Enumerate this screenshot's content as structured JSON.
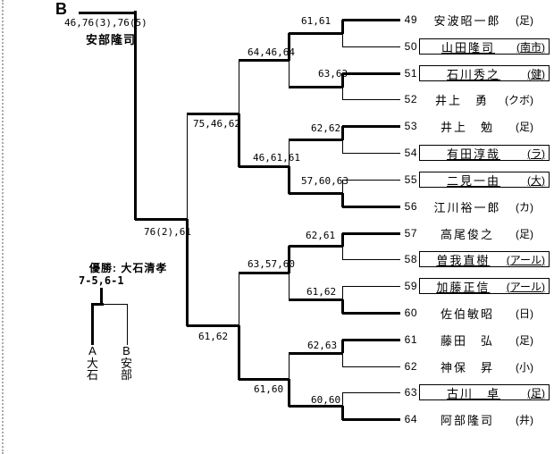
{
  "block": {
    "label": "B",
    "advance_score": "46,76(3),76(5)",
    "winner_name": "安部隆司"
  },
  "champion": {
    "title": "優勝: 大石清孝",
    "score": "7-5,6-1",
    "finalist_left": "A大石",
    "finalist_right": "B安部"
  },
  "players": [
    {
      "num": "49",
      "name": "安波昭一郎",
      "club": "(足)",
      "boxed": false
    },
    {
      "num": "50",
      "name": "山田隆司",
      "club": "(南市)",
      "boxed": true
    },
    {
      "num": "51",
      "name": "石川秀之",
      "club": "(健)",
      "boxed": true
    },
    {
      "num": "52",
      "name": "井上　勇",
      "club": "(クボ)",
      "boxed": false
    },
    {
      "num": "53",
      "name": "井上　勉",
      "club": "(足)",
      "boxed": false
    },
    {
      "num": "54",
      "name": "有田淳哉",
      "club": "(ラ)",
      "boxed": true
    },
    {
      "num": "55",
      "name": "二見一由",
      "club": "(大)",
      "boxed": true
    },
    {
      "num": "56",
      "name": "江川裕一郎",
      "club": "(カ)",
      "boxed": false
    },
    {
      "num": "57",
      "name": "高尾俊之",
      "club": "(足)",
      "boxed": false
    },
    {
      "num": "58",
      "name": "曽我直樹",
      "club": "(アール)",
      "boxed": true
    },
    {
      "num": "59",
      "name": "加藤正信",
      "club": "(アール)",
      "boxed": true
    },
    {
      "num": "60",
      "name": "佐伯敏昭",
      "club": "(日)",
      "boxed": false
    },
    {
      "num": "61",
      "name": "藤田　弘",
      "club": "(足)",
      "boxed": false
    },
    {
      "num": "62",
      "name": "神保　昇",
      "club": "(小)",
      "boxed": false
    },
    {
      "num": "63",
      "name": "古川　卓",
      "club": "(足)",
      "boxed": true
    },
    {
      "num": "64",
      "name": "阿部隆司",
      "club": "(井)",
      "boxed": false
    }
  ],
  "matches": {
    "round1": [
      {
        "score": "61,61",
        "winner": "top"
      },
      {
        "score": "63,63",
        "winner": "top"
      },
      {
        "score": "62,62",
        "winner": "top"
      },
      {
        "score": "57,60,63",
        "winner": "bottom"
      },
      {
        "score": "62,61",
        "winner": "top"
      },
      {
        "score": "61,62",
        "winner": "bottom"
      },
      {
        "score": "62,63",
        "winner": "top"
      },
      {
        "score": "60,60",
        "winner": "bottom"
      }
    ],
    "quarterfinals": [
      {
        "score": "64,46,64",
        "winner": "top"
      },
      {
        "score": "46,61,61",
        "winner": "bottom"
      },
      {
        "score": "63,57,60",
        "winner": "top"
      },
      {
        "score": "61,60",
        "winner": "bottom"
      }
    ],
    "semifinals": [
      {
        "score": "75,46,62",
        "winner": "bottom"
      },
      {
        "score": "61,62",
        "winner": "bottom"
      }
    ],
    "final": {
      "score": "76(2),61",
      "winner": "bottom"
    }
  }
}
